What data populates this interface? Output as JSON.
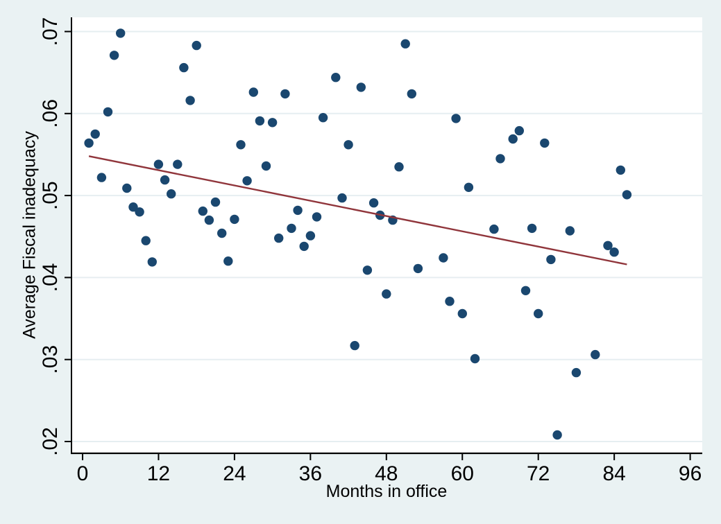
{
  "figure": {
    "background_color": "#eaf2f3",
    "plot_background_color": "#ffffff",
    "grid_color": "#e6eef1",
    "axis_color": "#000000",
    "text_color": "#000000",
    "marker_color": "#1a476f",
    "fit_line_color": "#90353b"
  },
  "chart_data": {
    "type": "scatter",
    "title": "",
    "xlabel": "Months in office",
    "ylabel": "Average Fiscal inadequacy",
    "xlim": [
      0,
      96
    ],
    "ylim": [
      0.02,
      0.07
    ],
    "x_ticks": [
      0,
      12,
      24,
      36,
      48,
      60,
      72,
      84,
      96
    ],
    "y_ticks": [
      {
        "value": 0.02,
        "label": ".02"
      },
      {
        "value": 0.03,
        "label": ".03"
      },
      {
        "value": 0.04,
        "label": ".04"
      },
      {
        "value": 0.05,
        "label": ".05"
      },
      {
        "value": 0.06,
        "label": ".06"
      },
      {
        "value": 0.07,
        "label": ".07"
      }
    ],
    "grid": true,
    "legend": "none",
    "series": [
      {
        "name": "average-fiscal-inadequacy-scatter",
        "type": "scatter",
        "points": [
          [
            1,
            0.0564
          ],
          [
            2,
            0.0575
          ],
          [
            3,
            0.0522
          ],
          [
            4,
            0.0602
          ],
          [
            5,
            0.0671
          ],
          [
            6,
            0.0698
          ],
          [
            7,
            0.0509
          ],
          [
            8,
            0.0486
          ],
          [
            9,
            0.048
          ],
          [
            10,
            0.0445
          ],
          [
            11,
            0.0419
          ],
          [
            12,
            0.0538
          ],
          [
            13,
            0.0519
          ],
          [
            14,
            0.0502
          ],
          [
            15,
            0.0538
          ],
          [
            16,
            0.0656
          ],
          [
            17,
            0.0616
          ],
          [
            18,
            0.0683
          ],
          [
            19,
            0.0481
          ],
          [
            20,
            0.047
          ],
          [
            21,
            0.0492
          ],
          [
            22,
            0.0454
          ],
          [
            23,
            0.042
          ],
          [
            24,
            0.0471
          ],
          [
            25,
            0.0562
          ],
          [
            26,
            0.0518
          ],
          [
            27,
            0.0626
          ],
          [
            28,
            0.0591
          ],
          [
            29,
            0.0536
          ],
          [
            30,
            0.0589
          ],
          [
            31,
            0.0448
          ],
          [
            32,
            0.0624
          ],
          [
            33,
            0.046
          ],
          [
            34,
            0.0482
          ],
          [
            35,
            0.0438
          ],
          [
            36,
            0.0451
          ],
          [
            37,
            0.0474
          ],
          [
            38,
            0.0595
          ],
          [
            40,
            0.0644
          ],
          [
            41,
            0.0497
          ],
          [
            42,
            0.0562
          ],
          [
            43,
            0.0317
          ],
          [
            44,
            0.0632
          ],
          [
            45,
            0.0409
          ],
          [
            46,
            0.0491
          ],
          [
            47,
            0.0476
          ],
          [
            48,
            0.038
          ],
          [
            49,
            0.047
          ],
          [
            50,
            0.0535
          ],
          [
            51,
            0.0685
          ],
          [
            52,
            0.0624
          ],
          [
            53,
            0.0411
          ],
          [
            57,
            0.0424
          ],
          [
            58,
            0.0371
          ],
          [
            59,
            0.0594
          ],
          [
            60,
            0.0356
          ],
          [
            61,
            0.051
          ],
          [
            62,
            0.0301
          ],
          [
            65,
            0.0459
          ],
          [
            66,
            0.0545
          ],
          [
            68,
            0.0569
          ],
          [
            69,
            0.0579
          ],
          [
            70,
            0.0384
          ],
          [
            71,
            0.046
          ],
          [
            72,
            0.0356
          ],
          [
            73,
            0.0564
          ],
          [
            74,
            0.0422
          ],
          [
            75,
            0.0208
          ],
          [
            77,
            0.0457
          ],
          [
            78,
            0.0284
          ],
          [
            81,
            0.0306
          ],
          [
            83,
            0.0439
          ],
          [
            84,
            0.0431
          ],
          [
            85,
            0.0531
          ],
          [
            86,
            0.0501
          ]
        ]
      },
      {
        "name": "linear-fit",
        "type": "line",
        "points": [
          [
            1,
            0.0548
          ],
          [
            86,
            0.0416
          ]
        ]
      }
    ]
  }
}
